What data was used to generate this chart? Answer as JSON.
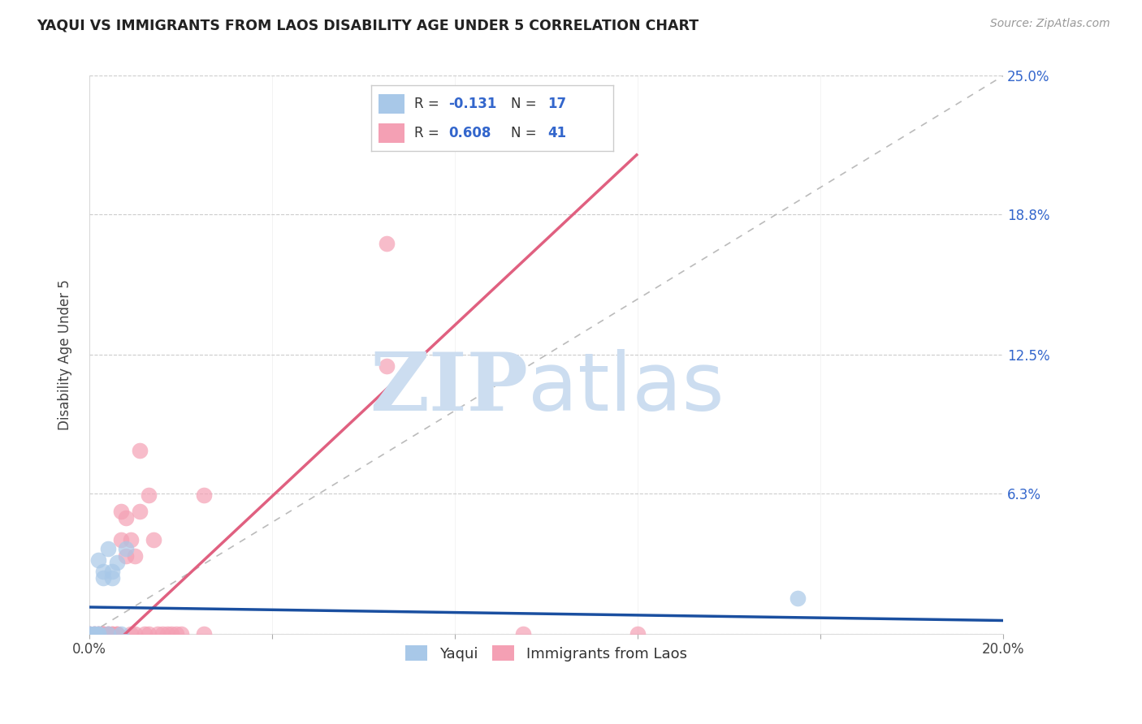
{
  "title": "YAQUI VS IMMIGRANTS FROM LAOS DISABILITY AGE UNDER 5 CORRELATION CHART",
  "source": "Source: ZipAtlas.com",
  "ylabel": "Disability Age Under 5",
  "xlim": [
    0.0,
    0.2
  ],
  "ylim": [
    0.0,
    0.25
  ],
  "xtick_positions": [
    0.0,
    0.04,
    0.08,
    0.12,
    0.16,
    0.2
  ],
  "xticklabels": [
    "0.0%",
    "",
    "",
    "",
    "",
    "20.0%"
  ],
  "ytick_positions": [
    0.0,
    0.063,
    0.125,
    0.188,
    0.25
  ],
  "ytick_labels": [
    "",
    "6.3%",
    "12.5%",
    "18.8%",
    "25.0%"
  ],
  "color_yaqui": "#a8c8e8",
  "color_laos": "#f4a0b4",
  "color_line_yaqui": "#1a4fa0",
  "color_line_laos": "#e06080",
  "watermark_color": "#ccddf0",
  "yaqui_line": [
    0.0,
    0.012,
    0.2,
    0.006
  ],
  "laos_line": [
    0.0,
    -0.015,
    0.12,
    0.215
  ],
  "yaqui_x": [
    0.0,
    0.0,
    0.001,
    0.001,
    0.002,
    0.002,
    0.002,
    0.003,
    0.003,
    0.004,
    0.004,
    0.005,
    0.005,
    0.006,
    0.007,
    0.008,
    0.155
  ],
  "yaqui_y": [
    0.0,
    0.0,
    0.0,
    0.0,
    0.0,
    0.0,
    0.033,
    0.025,
    0.028,
    0.038,
    0.0,
    0.025,
    0.028,
    0.032,
    0.0,
    0.038,
    0.016
  ],
  "laos_x": [
    0.0,
    0.0,
    0.001,
    0.001,
    0.002,
    0.002,
    0.003,
    0.003,
    0.003,
    0.004,
    0.004,
    0.005,
    0.005,
    0.006,
    0.006,
    0.007,
    0.007,
    0.008,
    0.008,
    0.009,
    0.009,
    0.01,
    0.01,
    0.011,
    0.011,
    0.012,
    0.013,
    0.013,
    0.014,
    0.015,
    0.016,
    0.017,
    0.018,
    0.019,
    0.02,
    0.025,
    0.025,
    0.065,
    0.065,
    0.095,
    0.12
  ],
  "laos_y": [
    0.0,
    0.0,
    0.0,
    0.0,
    0.0,
    0.0,
    0.0,
    0.0,
    0.0,
    0.0,
    0.0,
    0.0,
    0.0,
    0.0,
    0.0,
    0.042,
    0.055,
    0.035,
    0.052,
    0.0,
    0.042,
    0.035,
    0.0,
    0.055,
    0.082,
    0.0,
    0.062,
    0.0,
    0.042,
    0.0,
    0.0,
    0.0,
    0.0,
    0.0,
    0.0,
    0.062,
    0.0,
    0.175,
    0.12,
    0.0,
    0.0
  ],
  "legend_r1": "-0.131",
  "legend_n1": "17",
  "legend_r2": "0.608",
  "legend_n2": "41",
  "text_color_dark": "#333333",
  "text_color_blue": "#3366cc"
}
